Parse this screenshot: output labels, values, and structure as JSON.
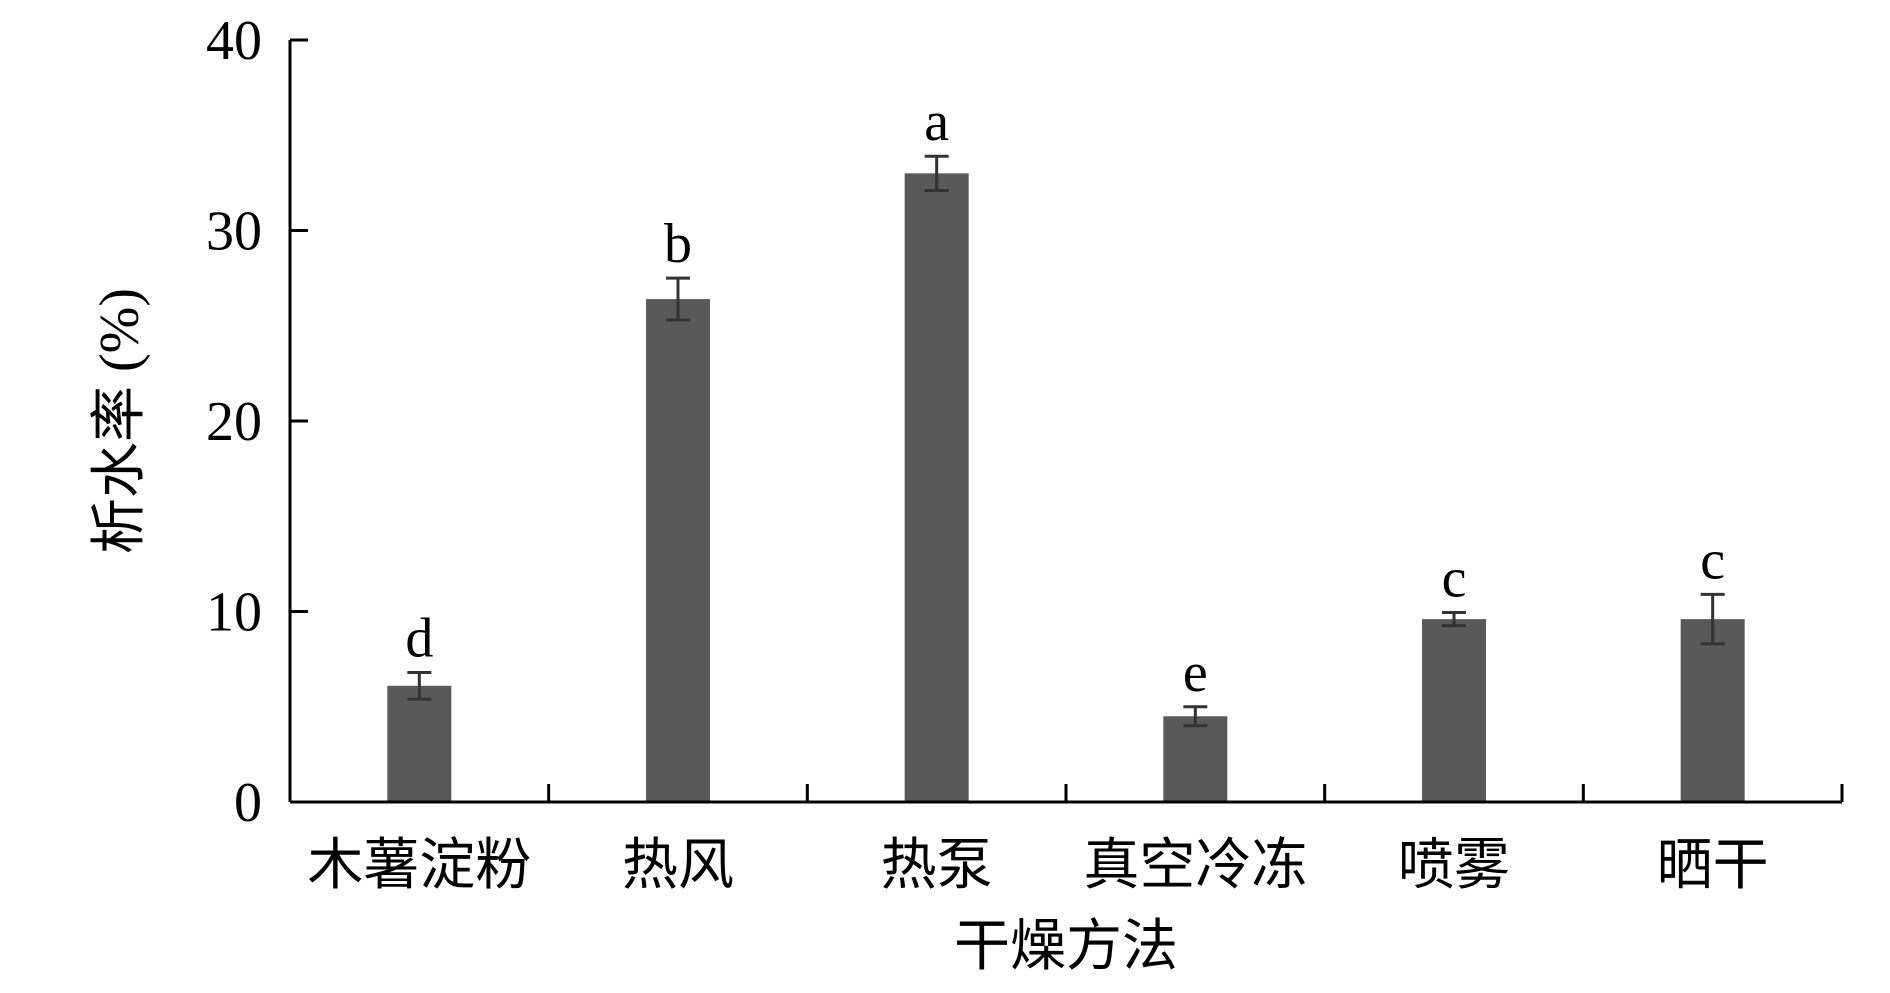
{
  "chart_data": {
    "type": "bar",
    "title": "",
    "xlabel": "干燥方法",
    "ylabel": "析水率 (%)",
    "ylim": [
      0,
      40
    ],
    "yticks": [
      "0",
      "10",
      "20",
      "30",
      "40"
    ],
    "grid": false,
    "legend": "none",
    "categories": [
      "木薯淀粉",
      "热风",
      "热泵",
      "真空冷冻",
      "喷雾",
      "晒干"
    ],
    "values": [
      6.1,
      26.4,
      33.0,
      4.5,
      9.6,
      9.6
    ],
    "errors": [
      0.7,
      1.1,
      0.9,
      0.5,
      0.35,
      1.3
    ],
    "significance": [
      "d",
      "b",
      "a",
      "e",
      "c",
      "c"
    ],
    "bar_color": "#595959",
    "axis_color": "#000000"
  }
}
